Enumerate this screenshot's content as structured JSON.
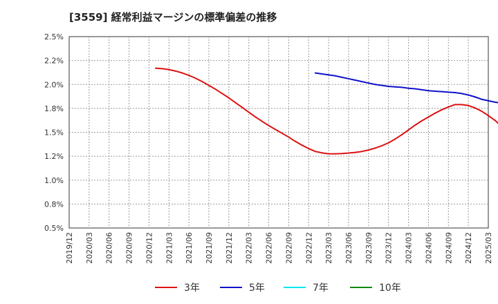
{
  "chart_data": {
    "type": "line",
    "title": "[3559]  経常利益マージンの標準偏差の推移",
    "xlabel": "",
    "ylabel": "",
    "x": [
      "2019/12",
      "2020/03",
      "2020/06",
      "2020/09",
      "2020/12",
      "2021/03",
      "2021/06",
      "2021/09",
      "2021/12",
      "2022/03",
      "2022/06",
      "2022/09",
      "2022/12",
      "2023/03",
      "2023/06",
      "2023/09",
      "2023/12",
      "2024/03",
      "2024/06",
      "2024/09",
      "2024/12",
      "2025/03"
    ],
    "yticks": [
      "0.5%",
      "0.8%",
      "1.0%",
      "1.2%",
      "1.5%",
      "1.8%",
      "2.0%",
      "2.2%",
      "2.5%"
    ],
    "ylim": [
      0.5,
      2.5
    ],
    "grid": true,
    "legend_position": "bottom",
    "series": [
      {
        "name": "3年",
        "color": "#dd1111",
        "points": [
          [
            "2021/01",
            2.17
          ],
          [
            "2021/02",
            2.165
          ],
          [
            "2021/03",
            2.155
          ],
          [
            "2021/04",
            2.14
          ],
          [
            "2021/05",
            2.12
          ],
          [
            "2021/06",
            2.095
          ],
          [
            "2021/07",
            2.065
          ],
          [
            "2021/08",
            2.03
          ],
          [
            "2021/09",
            1.99
          ],
          [
            "2021/10",
            1.95
          ],
          [
            "2021/11",
            1.905
          ],
          [
            "2021/12",
            1.86
          ],
          [
            "2022/01",
            1.81
          ],
          [
            "2022/02",
            1.76
          ],
          [
            "2022/03",
            1.71
          ],
          [
            "2022/04",
            1.66
          ],
          [
            "2022/05",
            1.615
          ],
          [
            "2022/06",
            1.57
          ],
          [
            "2022/07",
            1.53
          ],
          [
            "2022/08",
            1.49
          ],
          [
            "2022/09",
            1.45
          ],
          [
            "2022/10",
            1.405
          ],
          [
            "2022/11",
            1.365
          ],
          [
            "2022/12",
            1.33
          ],
          [
            "2023/01",
            1.3
          ],
          [
            "2023/02",
            1.285
          ],
          [
            "2023/03",
            1.275
          ],
          [
            "2023/04",
            1.275
          ],
          [
            "2023/05",
            1.278
          ],
          [
            "2023/06",
            1.283
          ],
          [
            "2023/07",
            1.29
          ],
          [
            "2023/08",
            1.3
          ],
          [
            "2023/09",
            1.315
          ],
          [
            "2023/10",
            1.335
          ],
          [
            "2023/11",
            1.36
          ],
          [
            "2023/12",
            1.39
          ],
          [
            "2024/01",
            1.43
          ],
          [
            "2024/02",
            1.475
          ],
          [
            "2024/03",
            1.525
          ],
          [
            "2024/04",
            1.575
          ],
          [
            "2024/05",
            1.62
          ],
          [
            "2024/06",
            1.66
          ],
          [
            "2024/07",
            1.7
          ],
          [
            "2024/08",
            1.735
          ],
          [
            "2024/09",
            1.765
          ],
          [
            "2024/10",
            1.79
          ],
          [
            "2024/11",
            1.79
          ],
          [
            "2024/12",
            1.78
          ],
          [
            "2025/01",
            1.755
          ],
          [
            "2025/02",
            1.72
          ],
          [
            "2025/03",
            1.675
          ],
          [
            "2025/04",
            1.625
          ],
          [
            "2025/05",
            1.56
          ]
        ]
      },
      {
        "name": "5年",
        "color": "#1111cc",
        "points": [
          [
            "2023/01",
            2.12
          ],
          [
            "2023/02",
            2.11
          ],
          [
            "2023/03",
            2.1
          ],
          [
            "2023/04",
            2.09
          ],
          [
            "2023/05",
            2.075
          ],
          [
            "2023/06",
            2.06
          ],
          [
            "2023/07",
            2.045
          ],
          [
            "2023/08",
            2.03
          ],
          [
            "2023/09",
            2.015
          ],
          [
            "2023/10",
            2.0
          ],
          [
            "2023/11",
            1.99
          ],
          [
            "2023/12",
            1.98
          ],
          [
            "2024/01",
            1.975
          ],
          [
            "2024/02",
            1.97
          ],
          [
            "2024/03",
            1.96
          ],
          [
            "2024/04",
            1.955
          ],
          [
            "2024/05",
            1.945
          ],
          [
            "2024/06",
            1.935
          ],
          [
            "2024/07",
            1.93
          ],
          [
            "2024/08",
            1.925
          ],
          [
            "2024/09",
            1.92
          ],
          [
            "2024/10",
            1.915
          ],
          [
            "2024/11",
            1.905
          ],
          [
            "2024/12",
            1.89
          ],
          [
            "2025/01",
            1.87
          ],
          [
            "2025/02",
            1.845
          ],
          [
            "2025/03",
            1.83
          ],
          [
            "2025/04",
            1.815
          ],
          [
            "2025/05",
            1.805
          ]
        ]
      },
      {
        "name": "7年",
        "color": "#00e5ee",
        "points": []
      },
      {
        "name": "10年",
        "color": "#118811",
        "points": []
      }
    ]
  }
}
